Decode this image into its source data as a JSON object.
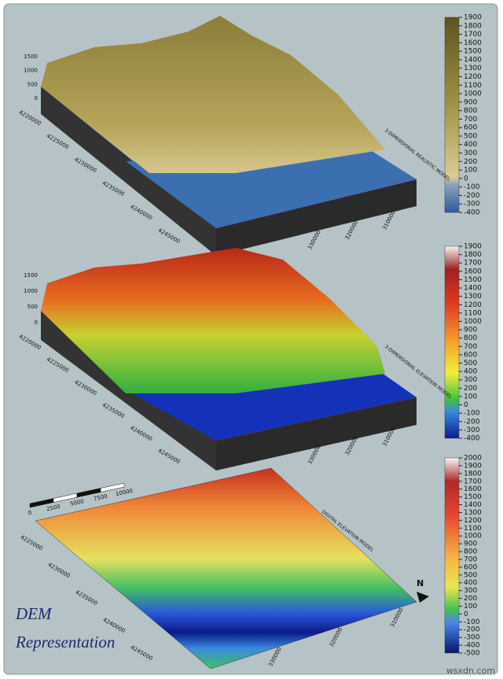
{
  "panels": [
    {
      "label": "3-DIMENSIONAL REALISTIC MODEL",
      "colorbar": [
        1900,
        1800,
        1700,
        1600,
        1500,
        1400,
        1300,
        1200,
        1100,
        1000,
        900,
        800,
        700,
        600,
        500,
        400,
        300,
        200,
        100,
        0,
        -100,
        -200,
        -300,
        -400
      ],
      "z_ticks": [
        1500,
        1000,
        500,
        0
      ],
      "northing": [
        4220000,
        4225000,
        4230000,
        4235000,
        4240000,
        4245000
      ],
      "easting": [
        330000,
        320000,
        310000
      ]
    },
    {
      "label": "3-DIMENSIONAL ELEVATION MODEL",
      "colorbar": [
        1900,
        1800,
        1700,
        1600,
        1500,
        1400,
        1300,
        1200,
        1100,
        1000,
        900,
        800,
        700,
        600,
        500,
        400,
        300,
        200,
        100,
        0,
        -100,
        -200,
        -300,
        -400
      ],
      "z_ticks": [
        1500,
        1000,
        500,
        0
      ],
      "northing": [
        4220000,
        4225000,
        4230000,
        4235000,
        4240000,
        4245000
      ],
      "easting": [
        330000,
        320000,
        310000
      ]
    },
    {
      "label": "DIGITAL ELEVATION MODEL",
      "colorbar": [
        2000,
        1900,
        1800,
        1700,
        1600,
        1500,
        1400,
        1300,
        1200,
        1100,
        1000,
        900,
        800,
        700,
        600,
        500,
        400,
        300,
        200,
        100,
        0,
        -100,
        -200,
        -300,
        -400,
        -500
      ],
      "northing": [
        4225000,
        4230000,
        4235000,
        4240000,
        4245000
      ],
      "easting": [
        330000,
        320000,
        310000
      ]
    }
  ],
  "scale_bar": [
    0,
    2500,
    5000,
    7500,
    10000
  ],
  "north": "N",
  "caption": [
    "DEM",
    "Representation"
  ],
  "watermark": "wsxdn.com"
}
